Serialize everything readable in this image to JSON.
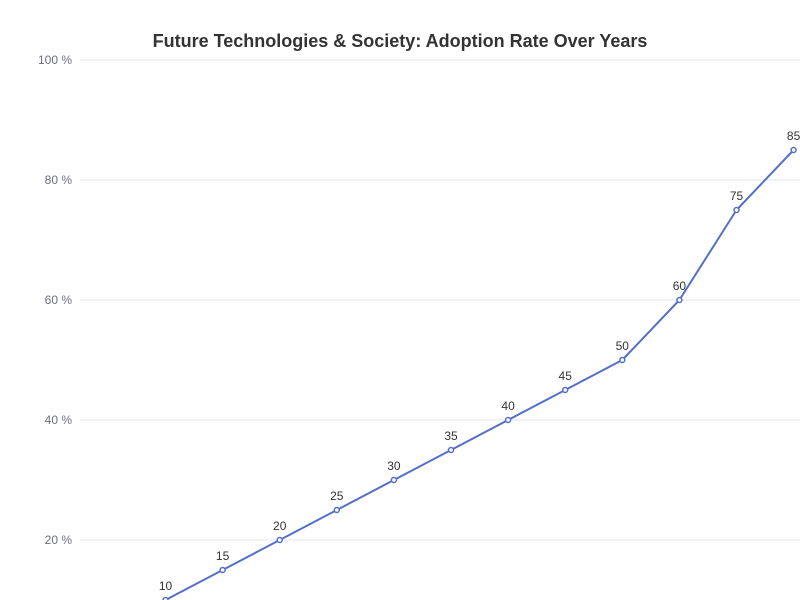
{
  "chart_data": {
    "type": "line",
    "title": "Future Technologies & Society: Adoption Rate Over Years",
    "y_ticks": [
      "20 %",
      "40 %",
      "60 %",
      "80 %",
      "100 %"
    ],
    "y_tick_values": [
      20,
      40,
      60,
      80,
      100
    ],
    "ylim": [
      0,
      100
    ],
    "grid": true,
    "series": [
      {
        "values": [
          10,
          15,
          20,
          25,
          30,
          35,
          40,
          45,
          50,
          60,
          75,
          85
        ],
        "data_labels": [
          "10",
          "15",
          "20",
          "25",
          "30",
          "35",
          "40",
          "45",
          "50",
          "60",
          "75",
          "85"
        ]
      }
    ],
    "colors": {
      "line": "#5470c6",
      "grid": "#e0e6f1",
      "axis_label": "#6e7079",
      "title": "#333333"
    }
  }
}
